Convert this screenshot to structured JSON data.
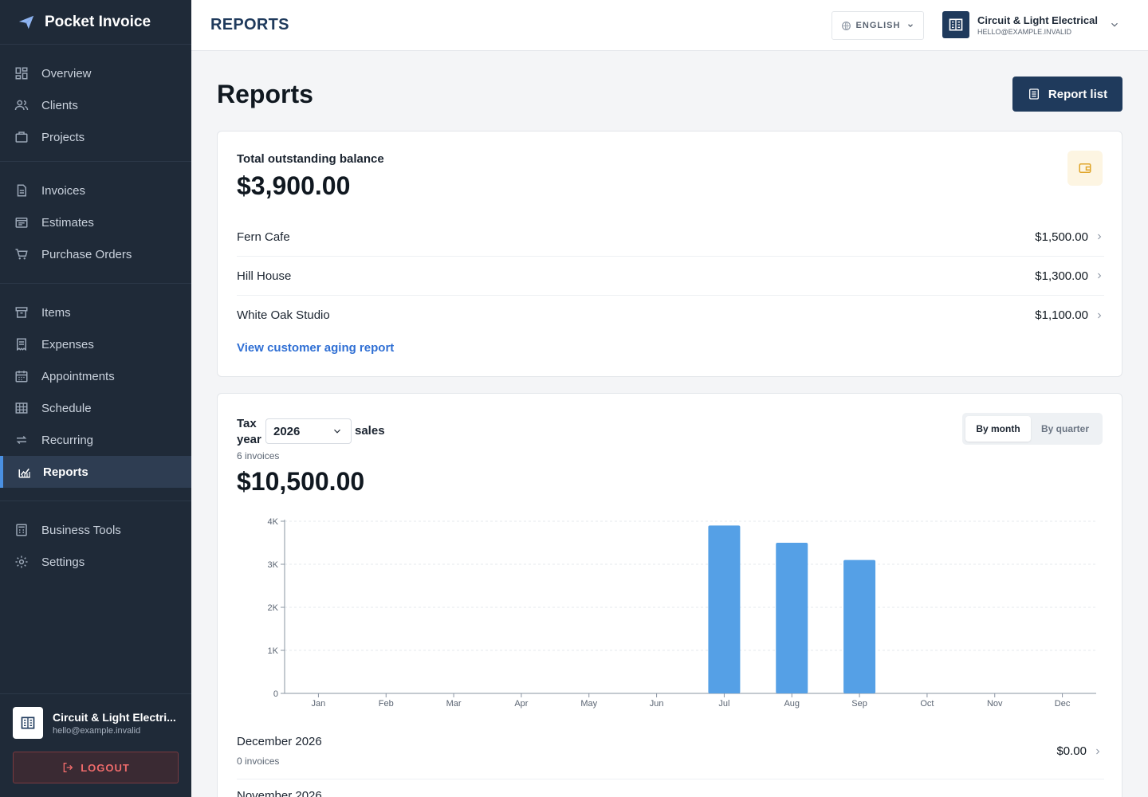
{
  "app": {
    "name": "Pocket Invoice"
  },
  "sidebar": {
    "groups": [
      [
        {
          "label": "Overview",
          "icon": "overview-icon"
        },
        {
          "label": "Clients",
          "icon": "clients-icon"
        },
        {
          "label": "Projects",
          "icon": "projects-icon"
        }
      ],
      [
        {
          "label": "Invoices",
          "icon": "invoice-icon"
        },
        {
          "label": "Estimates",
          "icon": "estimate-icon"
        },
        {
          "label": "Purchase Orders",
          "icon": "cart-icon"
        }
      ],
      [
        {
          "label": "Items",
          "icon": "items-icon"
        },
        {
          "label": "Expenses",
          "icon": "receipt-icon"
        },
        {
          "label": "Appointments",
          "icon": "calendar-icon"
        },
        {
          "label": "Schedule",
          "icon": "grid-icon"
        },
        {
          "label": "Recurring",
          "icon": "repeat-icon"
        },
        {
          "label": "Reports",
          "icon": "chart-icon",
          "active": true
        }
      ],
      [
        {
          "label": "Business Tools",
          "icon": "calculator-icon"
        },
        {
          "label": "Settings",
          "icon": "gear-icon"
        }
      ]
    ],
    "account": {
      "name": "Circuit & Light Electri...",
      "email": "hello@example.invalid"
    },
    "logout_label": "LOGOUT"
  },
  "topbar": {
    "title": "REPORTS",
    "language": "ENGLISH",
    "company_name": "Circuit & Light Electrical",
    "company_email": "HELLO@EXAMPLE.INVALID"
  },
  "page": {
    "title": "Reports",
    "report_list_label": "Report list"
  },
  "outstanding": {
    "label": "Total outstanding balance",
    "total": "$3,900.00",
    "rows": [
      {
        "name": "Fern Cafe",
        "amount": "$1,500.00"
      },
      {
        "name": "Hill House",
        "amount": "$1,300.00"
      },
      {
        "name": "White Oak Studio",
        "amount": "$1,100.00"
      }
    ],
    "aging_link": "View customer aging report"
  },
  "sales": {
    "tax_label": "Tax year",
    "year": "2026",
    "sales_label": "sales",
    "invoice_count": "6 invoices",
    "total": "$10,500.00",
    "toggle": {
      "by_month": "By month",
      "by_quarter": "By quarter",
      "selected": "By month"
    },
    "months": [
      {
        "name": "December 2026",
        "count": "0 invoices",
        "amount": "$0.00"
      },
      {
        "name": "November 2026"
      }
    ]
  },
  "colors": {
    "accent": "#1f3a5c",
    "bar": "#55a0e6",
    "link": "#2f6fd4",
    "sidebar": "#1f2a38"
  },
  "chart_data": {
    "type": "bar",
    "categories": [
      "Jan",
      "Feb",
      "Mar",
      "Apr",
      "May",
      "Jun",
      "Jul",
      "Aug",
      "Sep",
      "Oct",
      "Nov",
      "Dec"
    ],
    "values": [
      0,
      0,
      0,
      0,
      0,
      0,
      3900,
      3500,
      3100,
      0,
      0,
      0
    ],
    "yticks": [
      "0",
      "1K",
      "2K",
      "3K",
      "4K"
    ],
    "ylim": [
      0,
      4000
    ],
    "grid": true,
    "title": "",
    "xlabel": "",
    "ylabel": ""
  }
}
